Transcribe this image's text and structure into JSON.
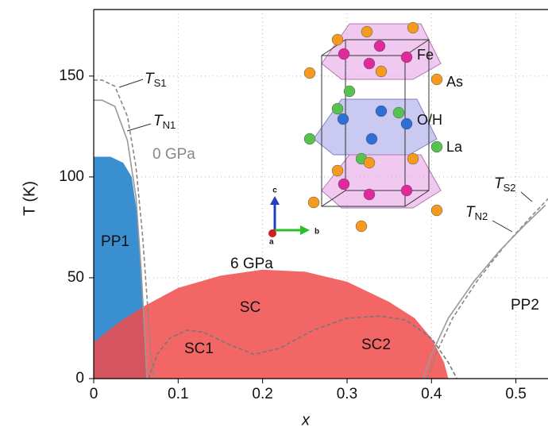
{
  "chart_data": {
    "type": "line",
    "x_label": "x",
    "y_label": "T (K)",
    "xlim": [
      0,
      0.538
    ],
    "ylim": [
      0,
      183
    ],
    "xticks": [
      0,
      0.1,
      0.2,
      0.3,
      0.4,
      0.5
    ],
    "yticks": [
      0,
      50,
      100,
      150
    ],
    "grid": true,
    "series": [
      {
        "name": "PP1",
        "color": "#3a8fd0",
        "style": "area",
        "x": [
          0,
          0.02,
          0.035,
          0.045,
          0.052,
          0.058,
          0.063
        ],
        "values": [
          110,
          110,
          107,
          100,
          80,
          40,
          0
        ]
      },
      {
        "name": "SC",
        "color": "#f04b4b",
        "style": "area",
        "x": [
          0,
          0.03,
          0.06,
          0.1,
          0.15,
          0.2,
          0.25,
          0.3,
          0.35,
          0.38,
          0.4,
          0.415,
          0.42
        ],
        "values": [
          18,
          28,
          36,
          45,
          51,
          54,
          53,
          48,
          38,
          30,
          20,
          8,
          0
        ]
      },
      {
        "color": "#777777",
        "style": "dashed",
        "x": [
          0.065,
          0.075,
          0.09,
          0.11,
          0.13,
          0.16,
          0.19,
          0.22,
          0.26,
          0.3,
          0.34,
          0.37,
          0.4,
          0.42,
          0.43
        ],
        "values": [
          0,
          12,
          20,
          24,
          23,
          17,
          12,
          15,
          24,
          30,
          31,
          29,
          20,
          8,
          0
        ]
      },
      {
        "color": "#888888",
        "style": "dashed",
        "x": [
          0,
          0.01,
          0.025,
          0.04,
          0.05,
          0.058,
          0.064,
          0.068,
          0.072
        ],
        "values": [
          148,
          148,
          145,
          130,
          105,
          70,
          35,
          10,
          0
        ]
      },
      {
        "color": "#999999",
        "style": "solid",
        "x": [
          0,
          0.01,
          0.025,
          0.04,
          0.05,
          0.056,
          0.06,
          0.063
        ],
        "values": [
          138,
          138,
          135,
          118,
          90,
          55,
          25,
          0
        ]
      },
      {
        "color": "#888888",
        "style": "dashed",
        "x": [
          0.395,
          0.405,
          0.425,
          0.455,
          0.485,
          0.515,
          0.54
        ],
        "values": [
          0,
          12,
          30,
          49,
          65,
          79,
          90
        ]
      },
      {
        "color": "#999999",
        "style": "solid",
        "x": [
          0.39,
          0.4,
          0.42,
          0.45,
          0.48,
          0.51,
          0.535
        ],
        "values": [
          0,
          12,
          30,
          48,
          63,
          76,
          86
        ]
      }
    ],
    "annotations": [
      {
        "symbol": "T",
        "subscript": "S1"
      },
      {
        "symbol": "T",
        "subscript": "N1"
      },
      "0 GPa",
      "6 GPa",
      "SC1",
      "SC2",
      "PP2",
      {
        "symbol": "T",
        "subscript": "S2"
      },
      {
        "symbol": "T",
        "subscript": "N2"
      }
    ]
  },
  "structure": {
    "atoms": [
      "Fe",
      "As",
      "O/H",
      "La"
    ],
    "axes": [
      "a",
      "b",
      "c"
    ]
  }
}
